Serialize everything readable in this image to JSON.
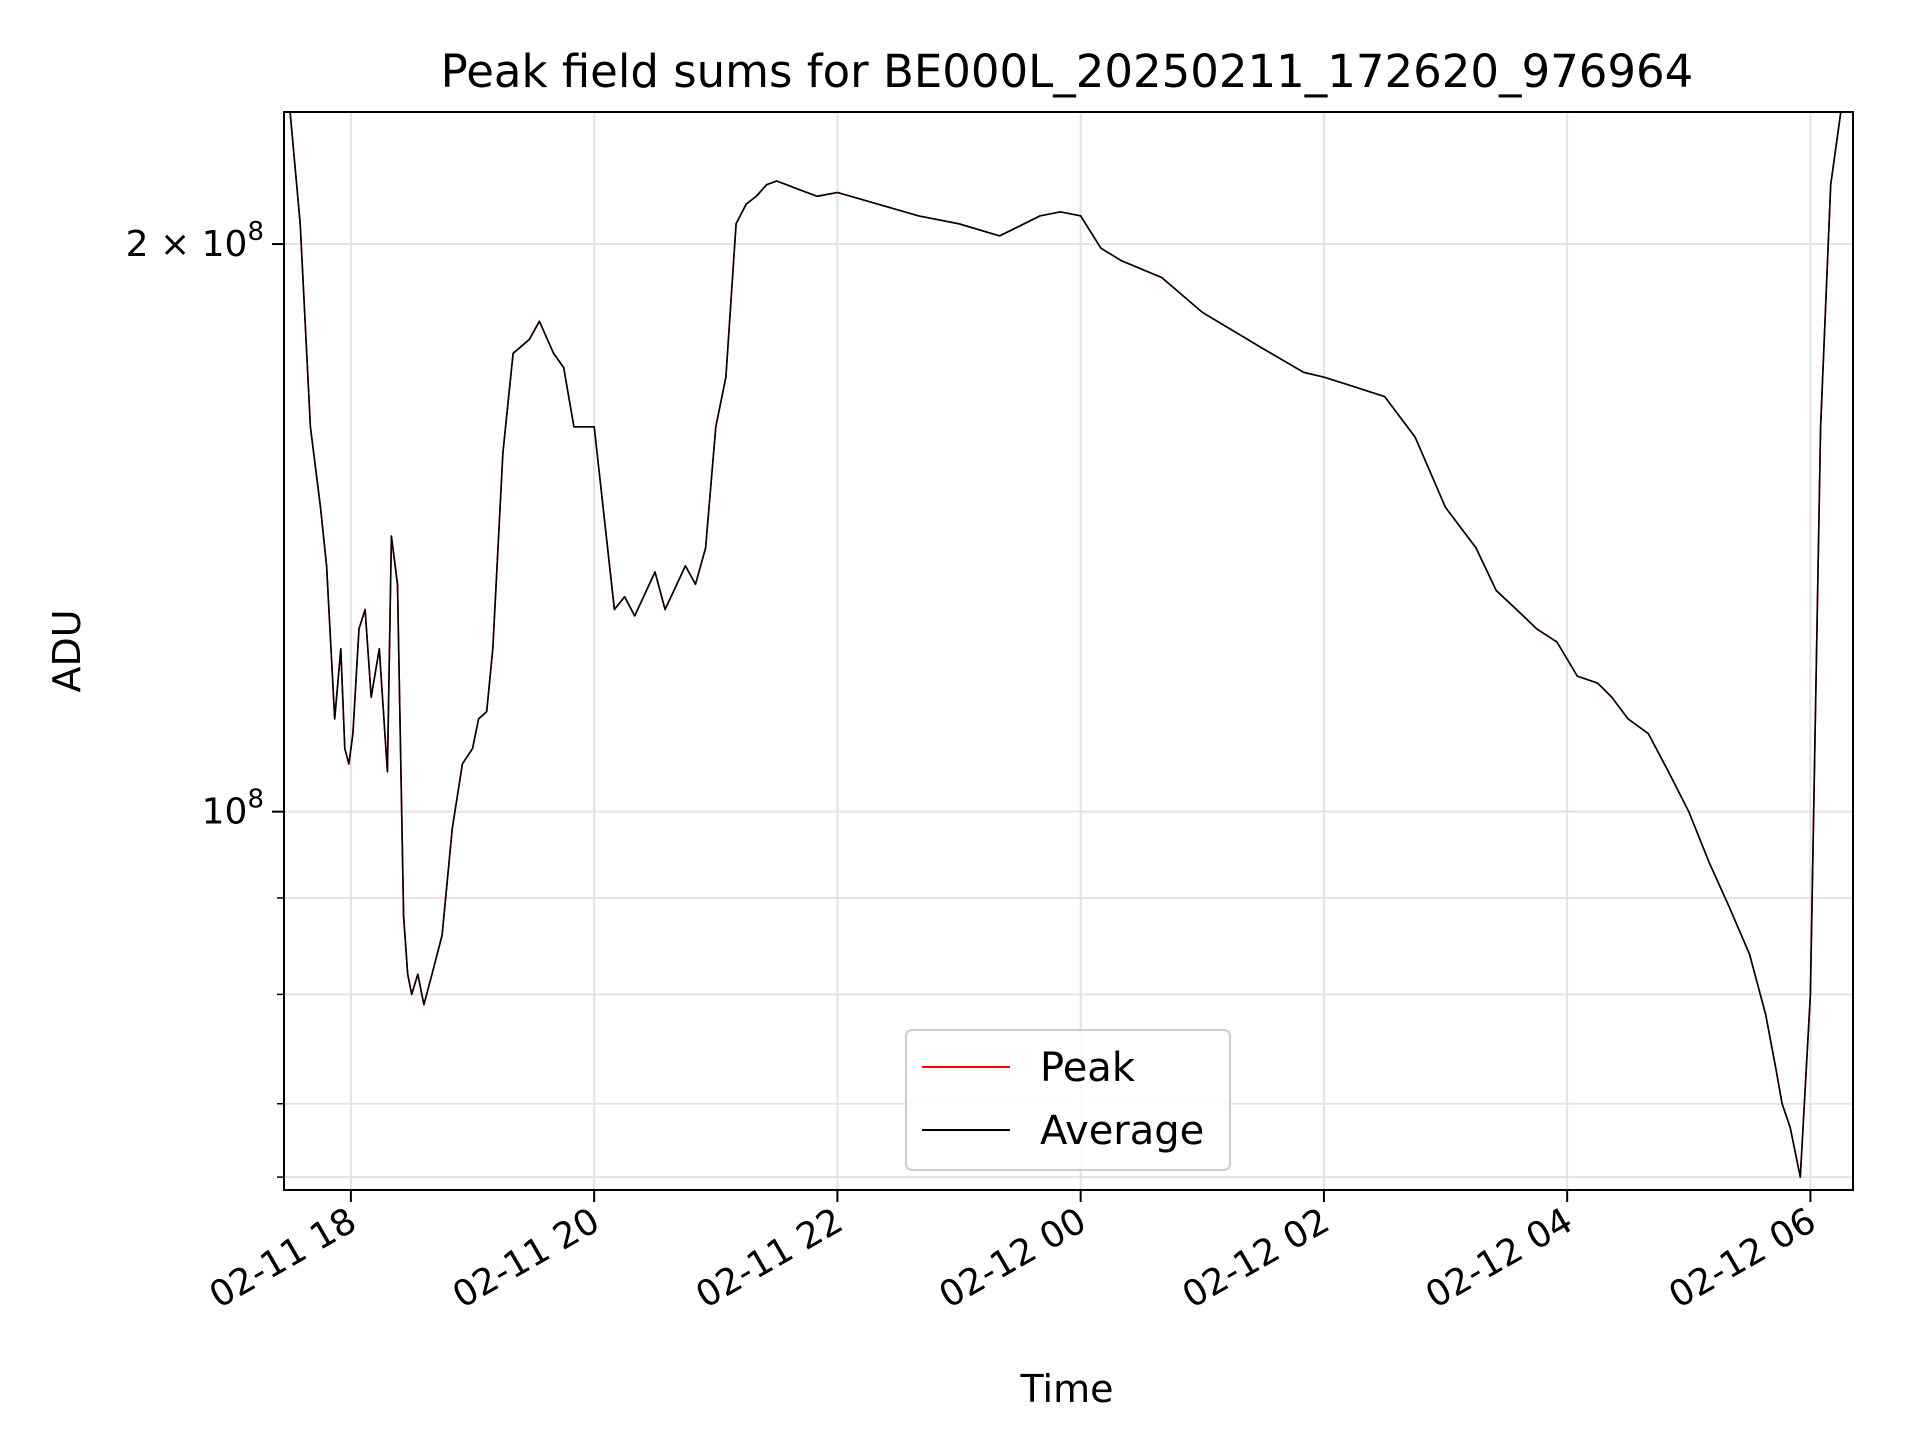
{
  "chart_data": {
    "type": "line",
    "title": "Peak field sums for BE000L_20250211_172620_976964",
    "xlabel": "Time",
    "ylabel": "ADU",
    "yscale": "log",
    "grid": true,
    "legend_position": "lower-center",
    "xlim": [
      "2025-02-11 17:27",
      "2025-02-12 06:21"
    ],
    "ylim": [
      63000000,
      235000000
    ],
    "x_ticks": [
      {
        "value": "2025-02-11 18:00",
        "label": "02-11 18"
      },
      {
        "value": "2025-02-11 20:00",
        "label": "02-11 20"
      },
      {
        "value": "2025-02-11 22:00",
        "label": "02-11 22"
      },
      {
        "value": "2025-02-12 00:00",
        "label": "02-12 00"
      },
      {
        "value": "2025-02-12 02:00",
        "label": "02-12 02"
      },
      {
        "value": "2025-02-12 04:00",
        "label": "02-12 04"
      },
      {
        "value": "2025-02-12 06:00",
        "label": "02-12 06"
      }
    ],
    "y_ticks": [
      {
        "value": 100000000,
        "base": "10",
        "exp": "8",
        "mantissa": ""
      },
      {
        "value": 200000000,
        "base": "10",
        "exp": "8",
        "mantissa": "2 × "
      }
    ],
    "y_minor_ticks": [
      64000000,
      70000000,
      80000000,
      90000000
    ],
    "x": [
      "2025-02-11 17:30",
      "2025-02-11 17:35",
      "2025-02-11 17:40",
      "2025-02-11 17:45",
      "2025-02-11 17:48",
      "2025-02-11 17:52",
      "2025-02-11 17:55",
      "2025-02-11 17:57",
      "2025-02-11 17:59",
      "2025-02-11 18:01",
      "2025-02-11 18:04",
      "2025-02-11 18:07",
      "2025-02-11 18:10",
      "2025-02-11 18:14",
      "2025-02-11 18:18",
      "2025-02-11 18:20",
      "2025-02-11 18:23",
      "2025-02-11 18:26",
      "2025-02-11 18:28",
      "2025-02-11 18:30",
      "2025-02-11 18:33",
      "2025-02-11 18:36",
      "2025-02-11 18:40",
      "2025-02-11 18:45",
      "2025-02-11 18:50",
      "2025-02-11 18:55",
      "2025-02-11 19:00",
      "2025-02-11 19:03",
      "2025-02-11 19:07",
      "2025-02-11 19:10",
      "2025-02-11 19:15",
      "2025-02-11 19:20",
      "2025-02-11 19:28",
      "2025-02-11 19:33",
      "2025-02-11 19:40",
      "2025-02-11 19:45",
      "2025-02-11 19:50",
      "2025-02-11 20:00",
      "2025-02-11 20:10",
      "2025-02-11 20:15",
      "2025-02-11 20:20",
      "2025-02-11 20:30",
      "2025-02-11 20:35",
      "2025-02-11 20:45",
      "2025-02-11 20:50",
      "2025-02-11 20:55",
      "2025-02-11 21:00",
      "2025-02-11 21:05",
      "2025-02-11 21:10",
      "2025-02-11 21:15",
      "2025-02-11 21:20",
      "2025-02-11 21:25",
      "2025-02-11 21:30",
      "2025-02-11 21:35",
      "2025-02-11 21:40",
      "2025-02-11 21:45",
      "2025-02-11 21:50",
      "2025-02-11 22:00",
      "2025-02-11 22:20",
      "2025-02-11 22:40",
      "2025-02-11 23:00",
      "2025-02-11 23:20",
      "2025-02-11 23:40",
      "2025-02-11 23:50",
      "2025-02-12 00:00",
      "2025-02-12 00:10",
      "2025-02-12 00:20",
      "2025-02-12 00:40",
      "2025-02-12 01:00",
      "2025-02-12 01:30",
      "2025-02-12 01:50",
      "2025-02-12 02:00",
      "2025-02-12 02:15",
      "2025-02-12 02:30",
      "2025-02-12 02:45",
      "2025-02-12 03:00",
      "2025-02-12 03:15",
      "2025-02-12 03:25",
      "2025-02-12 03:35",
      "2025-02-12 03:45",
      "2025-02-12 03:55",
      "2025-02-12 04:05",
      "2025-02-12 04:15",
      "2025-02-12 04:22",
      "2025-02-12 04:30",
      "2025-02-12 04:40",
      "2025-02-12 04:50",
      "2025-02-12 05:00",
      "2025-02-12 05:10",
      "2025-02-12 05:20",
      "2025-02-12 05:30",
      "2025-02-12 05:38",
      "2025-02-12 05:43",
      "2025-02-12 05:46",
      "2025-02-12 05:50",
      "2025-02-12 05:55",
      "2025-02-12 06:00",
      "2025-02-12 06:05",
      "2025-02-12 06:10",
      "2025-02-12 06:15"
    ],
    "series": [
      {
        "name": "Peak",
        "color": "#ff0000",
        "values": [
          235000000,
          205000000,
          160000000,
          145000000,
          135000000,
          112000000,
          122000000,
          108000000,
          106000000,
          110000000,
          125000000,
          128000000,
          115000000,
          122000000,
          105000000,
          140000000,
          132000000,
          88000000,
          82000000,
          80000000,
          82000000,
          79000000,
          82000000,
          86000000,
          98000000,
          106000000,
          108000000,
          112000000,
          113000000,
          122000000,
          155000000,
          175000000,
          178000000,
          182000000,
          175000000,
          172000000,
          160000000,
          160000000,
          128000000,
          130000000,
          127000000,
          134000000,
          128000000,
          135000000,
          132000000,
          138000000,
          160000000,
          170000000,
          205000000,
          210000000,
          212000000,
          215000000,
          216000000,
          215000000,
          214000000,
          213000000,
          212000000,
          213000000,
          210000000,
          207000000,
          205000000,
          202000000,
          207000000,
          208000000,
          207000000,
          199000000,
          196000000,
          192000000,
          184000000,
          176000000,
          171000000,
          170000000,
          168000000,
          166000000,
          158000000,
          145000000,
          138000000,
          131000000,
          128000000,
          125000000,
          123000000,
          118000000,
          117000000,
          115000000,
          112000000,
          110000000,
          105000000,
          100000000,
          94000000,
          89000000,
          84000000,
          78000000,
          73000000,
          70000000,
          68000000,
          64000000,
          80000000,
          160000000,
          215000000,
          235000000
        ]
      },
      {
        "name": "Average",
        "color": "#000000",
        "values": [
          235000000,
          205000000,
          160000000,
          145000000,
          135000000,
          112000000,
          122000000,
          108000000,
          106000000,
          110000000,
          125000000,
          128000000,
          115000000,
          122000000,
          105000000,
          140000000,
          132000000,
          88000000,
          82000000,
          80000000,
          82000000,
          79000000,
          82000000,
          86000000,
          98000000,
          106000000,
          108000000,
          112000000,
          113000000,
          122000000,
          155000000,
          175000000,
          178000000,
          182000000,
          175000000,
          172000000,
          160000000,
          160000000,
          128000000,
          130000000,
          127000000,
          134000000,
          128000000,
          135000000,
          132000000,
          138000000,
          160000000,
          170000000,
          205000000,
          210000000,
          212000000,
          215000000,
          216000000,
          215000000,
          214000000,
          213000000,
          212000000,
          213000000,
          210000000,
          207000000,
          205000000,
          202000000,
          207000000,
          208000000,
          207000000,
          199000000,
          196000000,
          192000000,
          184000000,
          176000000,
          171000000,
          170000000,
          168000000,
          166000000,
          158000000,
          145000000,
          138000000,
          131000000,
          128000000,
          125000000,
          123000000,
          118000000,
          117000000,
          115000000,
          112000000,
          110000000,
          105000000,
          100000000,
          94000000,
          89000000,
          84000000,
          78000000,
          73000000,
          70000000,
          68000000,
          64000000,
          80000000,
          160000000,
          215000000,
          235000000
        ]
      }
    ]
  }
}
